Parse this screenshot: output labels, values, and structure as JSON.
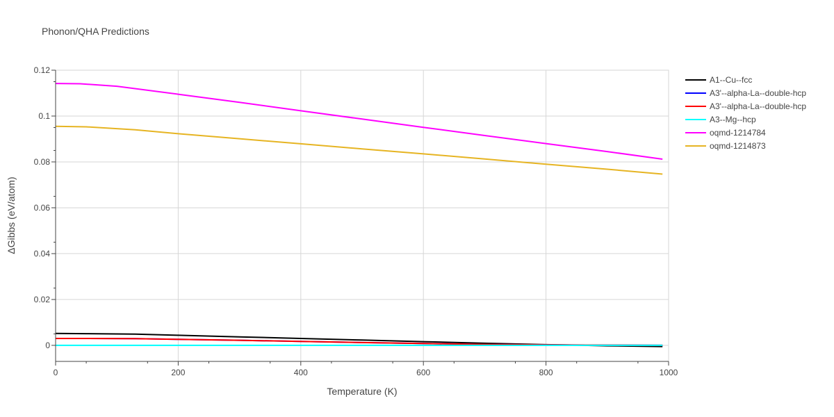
{
  "chart_data": {
    "type": "line",
    "title": "Phonon/QHA Predictions",
    "xlabel": "Temperature (K)",
    "ylabel": "ΔGibbs (eV/atom)",
    "xlim": [
      0,
      1000
    ],
    "ylim": [
      -0.007,
      0.12
    ],
    "x_ticks": [
      "0",
      "200",
      "400",
      "600",
      "800",
      "1000"
    ],
    "y_ticks": [
      "0",
      "0.02",
      "0.04",
      "0.06",
      "0.08",
      "0.1",
      "0.12"
    ],
    "grid": true,
    "legend_position": "right",
    "series": [
      {
        "name": "A1--Cu--fcc",
        "color": "#000000",
        "x": [
          0,
          50,
          130,
          200,
          300,
          400,
          500,
          600,
          700,
          800,
          850,
          900,
          990
        ],
        "y": [
          0.0052,
          0.0051,
          0.0049,
          0.0044,
          0.0037,
          0.003,
          0.0023,
          0.0016,
          0.0009,
          0.0003,
          0.0001,
          -0.0002,
          -0.0005
        ]
      },
      {
        "name": "A3'--alpha-La--double-hcp",
        "color": "#0000ff",
        "x": [
          0,
          50,
          130,
          200,
          300,
          400,
          500,
          600,
          700,
          800,
          900,
          990
        ],
        "y": [
          0.003,
          0.003,
          0.0029,
          0.0026,
          0.0022,
          0.0017,
          0.0012,
          0.0008,
          0.0004,
          0.0002,
          0.0001,
          0.0
        ]
      },
      {
        "name": "A3'--alpha-La--double-hcp",
        "color": "#ff0000",
        "x": [
          0,
          50,
          130,
          200,
          300,
          400,
          500,
          600,
          700,
          800,
          900,
          990
        ],
        "y": [
          0.003,
          0.003,
          0.0029,
          0.0026,
          0.0022,
          0.0017,
          0.0012,
          0.0008,
          0.0004,
          0.0002,
          0.0001,
          0.0
        ]
      },
      {
        "name": "A3--Mg--hcp",
        "color": "#00ffff",
        "x": [
          0,
          200,
          400,
          600,
          800,
          990
        ],
        "y": [
          0,
          0,
          0,
          0,
          0,
          0
        ]
      },
      {
        "name": "oqmd-1214784",
        "color": "#ff00ff",
        "x": [
          0,
          40,
          100,
          200,
          300,
          400,
          500,
          600,
          700,
          800,
          900,
          990
        ],
        "y": [
          0.1142,
          0.1141,
          0.113,
          0.1095,
          0.106,
          0.1023,
          0.0987,
          0.0951,
          0.0915,
          0.088,
          0.0845,
          0.0812
        ]
      },
      {
        "name": "oqmd-1214873",
        "color": "#e6b422",
        "x": [
          0,
          50,
          130,
          200,
          300,
          400,
          500,
          600,
          700,
          800,
          900,
          990
        ],
        "y": [
          0.0955,
          0.0953,
          0.094,
          0.0923,
          0.0901,
          0.0879,
          0.0857,
          0.0835,
          0.0813,
          0.079,
          0.0768,
          0.0747
        ]
      }
    ]
  }
}
